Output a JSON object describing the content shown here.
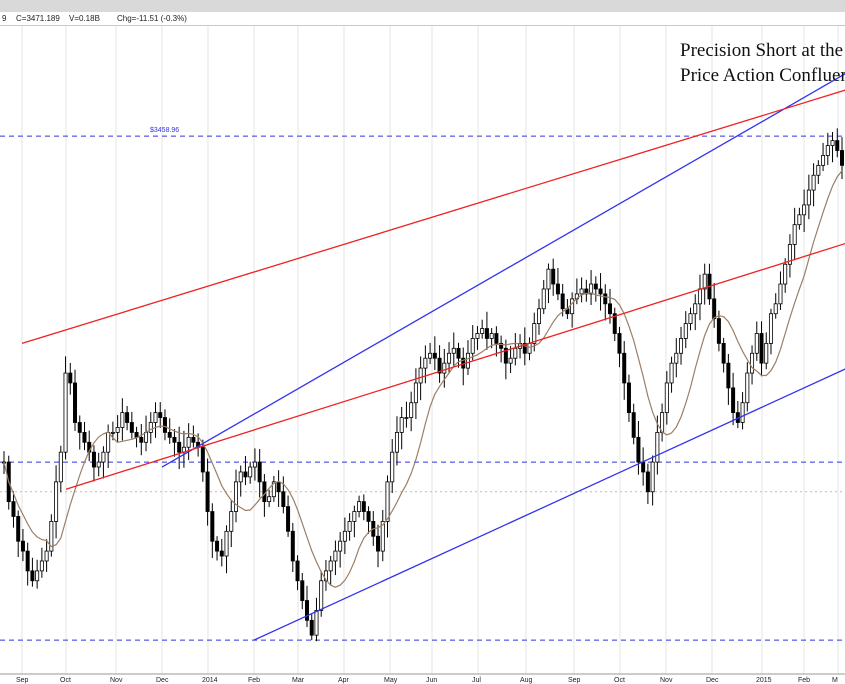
{
  "info": {
    "open_fragment": "9",
    "close": "C=3471.189",
    "volume": "V=0.18B",
    "change": "Chg=-11.51 (-0.3%)"
  },
  "title_lines": [
    "Precision Short at the",
    "Price Action Confluen"
  ],
  "colors": {
    "channel": "#3333ee",
    "inner_channel": "#ee2222",
    "level": "#3333dd",
    "ma": "#9b7f66",
    "candle": "#000000",
    "grid": "#e6e6e6"
  },
  "chart_data": {
    "type": "candlestick",
    "x_tick_labels": [
      "Sep",
      "Oct",
      "Nov",
      "Dec",
      "2014",
      "Feb",
      "Mar",
      "Apr",
      "May",
      "Jun",
      "Jul",
      "Aug",
      "Sep",
      "Oct",
      "Nov",
      "Dec",
      "2015",
      "Feb",
      "M"
    ],
    "horizontal_levels": [
      {
        "label": "$3458.96",
        "value": 3458.96
      },
      {
        "label": "",
        "value": 2800
      },
      {
        "label": "",
        "value": 2440
      }
    ],
    "dotted_level": 2740,
    "trendlines": [
      {
        "color": "blue",
        "from": [
          "Dec",
          2790
        ],
        "to": [
          "M",
          3600
        ]
      },
      {
        "color": "blue",
        "from": [
          "Feb",
          2440
        ],
        "to": [
          "M",
          3000
        ]
      },
      {
        "color": "red",
        "from": [
          "Sep",
          3040
        ],
        "to": [
          "M",
          3560
        ]
      },
      {
        "color": "red",
        "from": [
          "Oct",
          2745
        ],
        "to": [
          "M",
          3250
        ]
      }
    ],
    "ylim": [
      2420,
      3520
    ],
    "series": [
      {
        "name": "",
        "values": [
          2800,
          2720,
          2690,
          2640,
          2620,
          2580,
          2560,
          2580,
          2600,
          2620,
          2680,
          2760,
          2820,
          2980,
          2960,
          2880,
          2860,
          2840,
          2820,
          2790,
          2800,
          2820,
          2860,
          2860,
          2870,
          2900,
          2880,
          2860,
          2850,
          2840,
          2860,
          2880,
          2900,
          2890,
          2860,
          2850,
          2840,
          2820,
          2830,
          2850,
          2840,
          2830,
          2780,
          2700,
          2640,
          2620,
          2610,
          2660,
          2700,
          2760,
          2780,
          2770,
          2790,
          2800,
          2760,
          2720,
          2730,
          2760,
          2740,
          2710,
          2660,
          2600,
          2560,
          2520,
          2480,
          2450,
          2500,
          2560,
          2580,
          2600,
          2620,
          2640,
          2660,
          2680,
          2700,
          2720,
          2700,
          2680,
          2650,
          2620,
          2680,
          2760,
          2820,
          2860,
          2890,
          2890,
          2920,
          2960,
          2990,
          3010,
          3020,
          3010,
          2980,
          3000,
          3020,
          3030,
          3010,
          2990,
          3020,
          3050,
          3060,
          3070,
          3050,
          3060,
          3040,
          3030,
          3000,
          3010,
          3030,
          3040,
          3020,
          3040,
          3080,
          3110,
          3150,
          3190,
          3160,
          3140,
          3110,
          3100,
          3130,
          3140,
          3150,
          3140,
          3160,
          3150,
          3140,
          3120,
          3100,
          3060,
          3020,
          2960,
          2900,
          2850,
          2800,
          2780,
          2740,
          2800,
          2860,
          2900,
          2960,
          3000,
          3020,
          3050,
          3080,
          3100,
          3120,
          3150,
          3180,
          3130,
          3090,
          3040,
          3000,
          2950,
          2900,
          2880,
          2920,
          2980,
          3020,
          3060,
          3000,
          3040,
          3100,
          3120,
          3160,
          3200,
          3240,
          3280,
          3300,
          3320,
          3350,
          3380,
          3400,
          3420,
          3440,
          3450,
          3430,
          3400
        ]
      }
    ],
    "moving_average": {
      "name": "",
      "period": 10
    }
  }
}
